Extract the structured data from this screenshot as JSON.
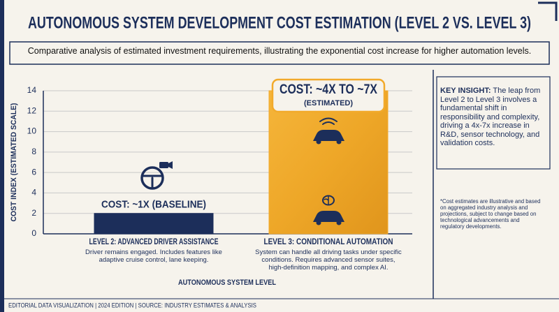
{
  "chart_data": {
    "type": "bar",
    "title": "AUTONOMOUS SYSTEM DEVELOPMENT COST ESTIMATION (LEVEL 2 VS. LEVEL 3)",
    "subtitle": "Comparative analysis of estimated investment requirements, illustrating the exponential cost increase for higher automation levels.",
    "categories": [
      "LEVEL 2: ADVANCED DRIVER ASSISTANCE",
      "LEVEL 3: CONDITIONAL AUTOMATION"
    ],
    "descriptions": [
      "Driver remains engaged. Includes features like adaptive cruise control, lane keeping.",
      "System can handle all driving tasks under specific conditions. Requires advanced sensor suites, high-definition mapping, and complex AI."
    ],
    "values": [
      2,
      14
    ],
    "colors": [
      "#1c2e5a",
      "#f2aa2b"
    ],
    "annotations": [
      [
        "COST: ~1X (BASELINE)"
      ],
      [
        "COST: ~4X TO ~7X",
        "(ESTIMATED)"
      ]
    ],
    "xlabel": "AUTONOMOUS SYSTEM LEVEL",
    "ylabel": "COST INDEX (ESTIMATED SCALE)",
    "ylim": [
      0,
      14
    ],
    "yticks": [
      0,
      2,
      4,
      6,
      8,
      10,
      12,
      14
    ],
    "grid": true
  },
  "side_panel": {
    "insight_heading": "KEY INSIGHT:",
    "insight_text": "The leap from Level 2 to Level 3 involves a fundamental shift in responsibility and complexity, driving a 4x-7x increase in R&D, sensor technology, and validation costs.",
    "footnote": "*Cost estimates are illustrative and based on aggregated industry analysis and projections, subject to change based on technological advancements and regulatory developments."
  },
  "footer": "EDITORIAL DATA VISUALIZATION | 2024 EDITION | SOURCE: INDUSTRY ESTIMATES & ANALYSIS"
}
